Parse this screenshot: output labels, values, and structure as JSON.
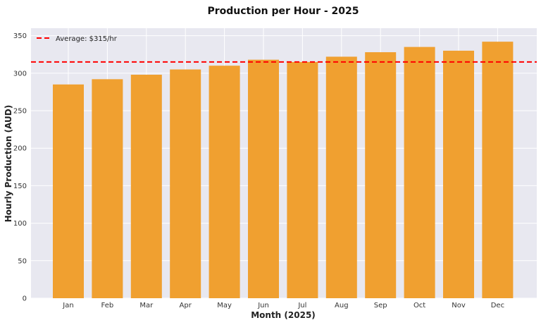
{
  "chart_data": {
    "type": "bar",
    "title": "Production per Hour - 2025",
    "xlabel": "Month (2025)",
    "ylabel": "Hourly Production (AUD)",
    "categories": [
      "Jan",
      "Feb",
      "Mar",
      "Apr",
      "May",
      "Jun",
      "Jul",
      "Aug",
      "Sep",
      "Oct",
      "Nov",
      "Dec"
    ],
    "values": [
      285,
      292,
      298,
      305,
      310,
      318,
      315,
      322,
      328,
      335,
      330,
      342
    ],
    "ylim": [
      0,
      360
    ],
    "yticks": [
      0,
      50,
      100,
      150,
      200,
      250,
      300,
      350
    ],
    "bar_color": "#f0a030",
    "background_color": "#e8e8f0",
    "grid": true,
    "reference_line": {
      "value": 315,
      "label": "Average: $315/hr",
      "color": "#ff0000",
      "style": "dashed"
    },
    "legend_position": "top-left"
  }
}
